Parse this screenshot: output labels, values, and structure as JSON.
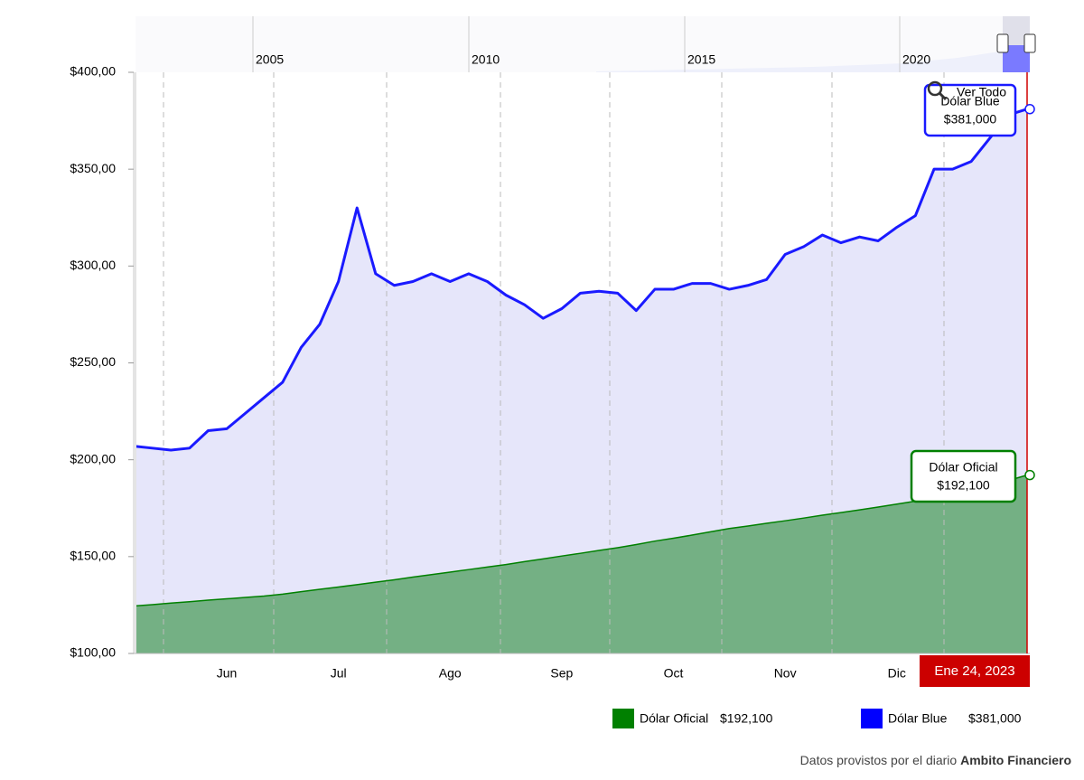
{
  "chart_data": {
    "type": "area",
    "categories": [
      null,
      null,
      null,
      null,
      null,
      "Jun",
      null,
      null,
      null,
      null,
      null,
      "Jul",
      null,
      null,
      null,
      null,
      null,
      "Ago",
      null,
      null,
      null,
      null,
      null,
      "Sep",
      null,
      null,
      null,
      null,
      null,
      "Oct",
      null,
      null,
      null,
      null,
      null,
      "Nov",
      null,
      null,
      null,
      null,
      null,
      "Dic",
      null,
      null,
      null,
      null,
      null,
      null,
      "Ene 24, 2023"
    ],
    "series": [
      {
        "name": "Dólar Oficial",
        "color": "#008000",
        "fill": "#74b084",
        "last_value_label": "$192,100",
        "values": [
          124.5,
          125.2,
          126,
          126.7,
          127.5,
          128.2,
          128.9,
          129.6,
          130.6,
          131.9,
          133.1,
          134.3,
          135.5,
          136.8,
          138,
          139.4,
          140.7,
          142,
          143.3,
          144.6,
          145.9,
          147.4,
          148.8,
          150.3,
          151.7,
          153.2,
          154.6,
          156.2,
          158,
          159.5,
          161.1,
          162.8,
          164.5,
          165.8,
          167.2,
          168.5,
          169.9,
          171.4,
          172.7,
          174.1,
          175.6,
          177.1,
          178.6,
          180.1,
          181.9,
          184.3,
          186.8,
          189.3,
          192.1
        ]
      },
      {
        "name": "Dólar Blue",
        "color": "#1a1aff",
        "fill": "#e6e6fa",
        "last_value_label": "$381,000",
        "values": [
          207,
          206,
          205,
          206,
          215,
          216,
          224,
          232,
          240,
          258,
          270,
          292,
          330,
          296,
          290,
          292,
          296,
          292,
          296,
          292,
          285,
          280,
          273,
          278,
          286,
          287,
          286,
          277,
          288,
          288,
          291,
          291,
          288,
          290,
          293,
          306,
          310,
          316,
          312,
          315,
          313,
          320,
          326,
          350,
          350,
          354,
          366,
          378,
          381
        ]
      }
    ],
    "ylim": [
      100,
      400
    ],
    "yticks": [
      {
        "value": 100,
        "label": "$100,00"
      },
      {
        "value": 150,
        "label": "$150,00"
      },
      {
        "value": 200,
        "label": "$200,00"
      },
      {
        "value": 250,
        "label": "$250,00"
      },
      {
        "value": 300,
        "label": "$300,00"
      },
      {
        "value": 350,
        "label": "$350,00"
      },
      {
        "value": 400,
        "label": "$400,00"
      }
    ],
    "navigator": {
      "labels": [
        "2005",
        "2010",
        "2015",
        "2020"
      ]
    },
    "zoom_button": "Ver Todo",
    "source": {
      "text": "Datos provistos por el diario",
      "name": "Ambito Financiero"
    }
  }
}
